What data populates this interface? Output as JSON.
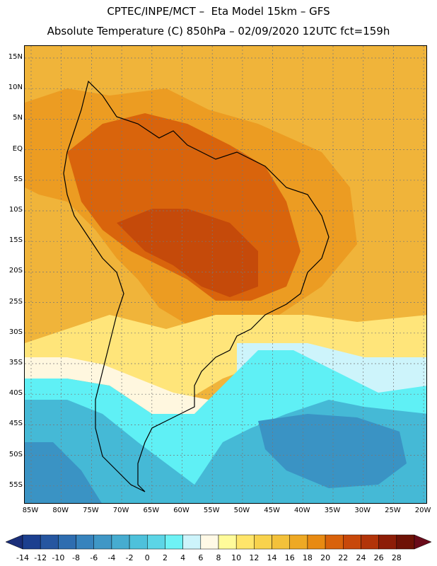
{
  "header": {
    "line1": "CPTEC/INPE/MCT –  Eta Model 15km – GFS",
    "line2": "Absolute Temperature (C) 850hPa – 02/09/2020 12UTC fct=159h"
  },
  "map": {
    "lat_labels": [
      "15N",
      "10N",
      "5N",
      "EQ",
      "5S",
      "10S",
      "15S",
      "20S",
      "25S",
      "30S",
      "35S",
      "40S",
      "45S",
      "50S",
      "55S"
    ],
    "lon_labels": [
      "85W",
      "80W",
      "75W",
      "70W",
      "65W",
      "60W",
      "55W",
      "50W",
      "45W",
      "40W",
      "35W",
      "30W",
      "25W",
      "20W"
    ]
  },
  "colorbar": {
    "labels": [
      "-14",
      "-12",
      "-10",
      "-8",
      "-6",
      "-4",
      "-2",
      "0",
      "2",
      "4",
      "6",
      "8",
      "10",
      "12",
      "14",
      "16",
      "18",
      "20",
      "22",
      "24",
      "26",
      "28"
    ],
    "colors": [
      "#1c3f8f",
      "#2656a0",
      "#2e6db0",
      "#3783bd",
      "#3f97c6",
      "#46acd0",
      "#4ec1db",
      "#5cd5e6",
      "#6ef2f5",
      "#cdf4fb",
      "#fff9e6",
      "#fffb9a",
      "#ffe56a",
      "#f8d24c",
      "#f3c13a",
      "#eea924",
      "#e88a12",
      "#d9620b",
      "#c8480a",
      "#b23409",
      "#8d1d07",
      "#6e1206"
    ],
    "left_arrow_color": "#1a2e79",
    "right_arrow_color": "#6a0b1a"
  },
  "palette": {
    "ocean_n": "#f0b43a",
    "warm": "#ec9c22",
    "hot": "#d9640c",
    "hotter": "#c54a0a",
    "pale_yellow": "#ffe57a",
    "cream": "#fff7df",
    "cyan": "#5ff0f5",
    "light_blue": "#cdf4fb",
    "teal": "#45b9d6",
    "blue": "#3a93c4",
    "coast": "#000000"
  }
}
